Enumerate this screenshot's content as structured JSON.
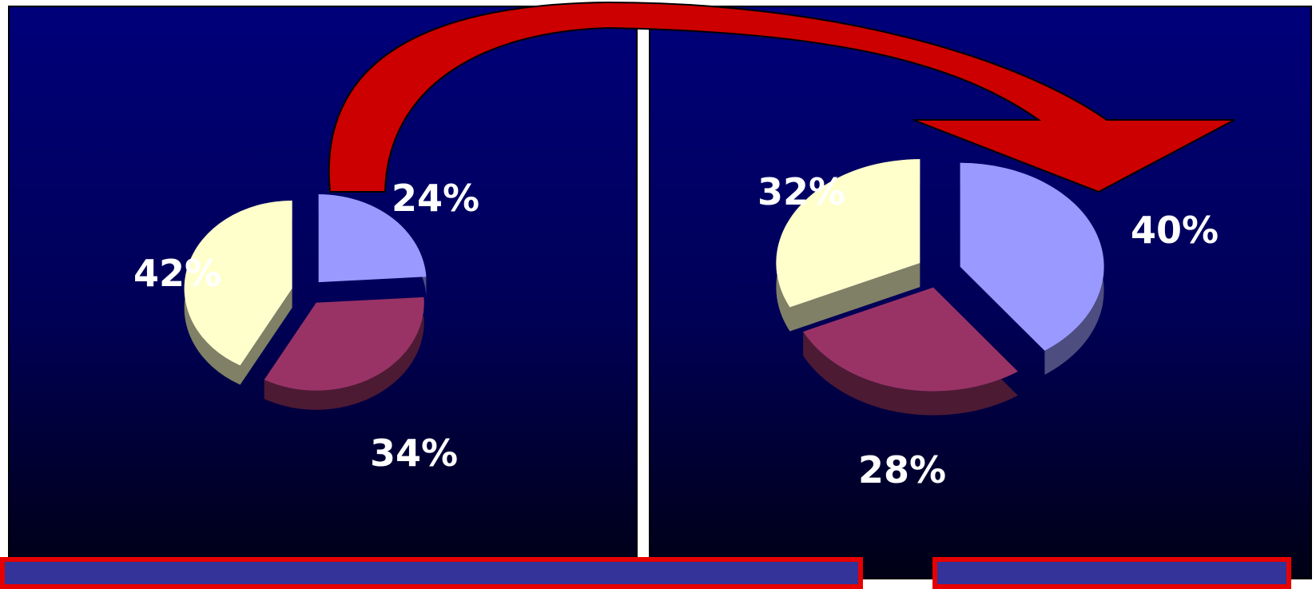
{
  "chart_data": [
    {
      "type": "pie",
      "labels": [
        "24%",
        "34%",
        "42%"
      ],
      "values": [
        24,
        34,
        42
      ],
      "colors": [
        "#9999ff",
        "#993366",
        "#ffffcc"
      ],
      "exploded": true,
      "3d": true
    },
    {
      "type": "pie",
      "labels": [
        "40%",
        "28%",
        "32%"
      ],
      "values": [
        40,
        28,
        32
      ],
      "colors": [
        "#9999ff",
        "#993366",
        "#ffffcc"
      ],
      "exploded": true,
      "3d": true
    }
  ],
  "decor": {
    "arrow_color": "#cc0000",
    "box_border_color": "#e60000",
    "box_fill_color": "#33339a",
    "label_color": "#ffffff"
  }
}
